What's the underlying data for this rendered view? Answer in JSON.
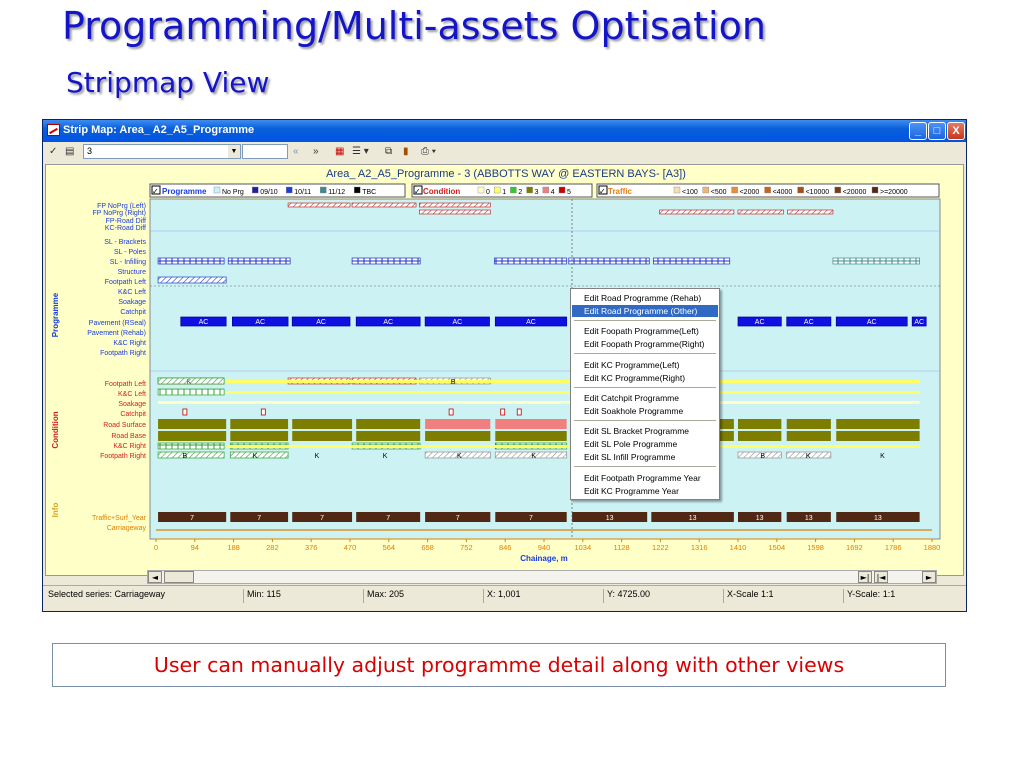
{
  "slide": {
    "title": "Programming/Multi-assets Optisation",
    "subtitle": "Stripmap View",
    "caption": "User can manually adjust programme detail along with other views"
  },
  "window": {
    "title": "Strip Map: Area_ A2_A5_Programme",
    "controls": [
      "_",
      "□",
      "X"
    ]
  },
  "toolbar": {
    "select_value": "3",
    "nav_back": "«",
    "nav_forward": "»",
    "icons": [
      "filter-icon",
      "copy-icon",
      "chart-icon",
      "list-icon",
      "copy-2-icon",
      "bar-chart-icon",
      "print-icon"
    ]
  },
  "plot": {
    "title": "Area_ A2_A5_Programme - 3 (ABBOTTS WAY @ EASTERN BAYS- [A3])",
    "xlabel": "Chainage, m",
    "x_ticks": [
      "0",
      "94",
      "188",
      "282",
      "376",
      "470",
      "564",
      "658",
      "752",
      "846",
      "940",
      "1034",
      "1128",
      "1222",
      "1316",
      "1410",
      "1504",
      "1598",
      "1692",
      "1786",
      "1880"
    ],
    "legends": {
      "programme": {
        "title": "Programme",
        "items": [
          "No Prg",
          "09/10",
          "10/11",
          "11/12",
          "TBC"
        ],
        "colors": [
          "#c8f0ff",
          "#1e1ea0",
          "#1a3ce0",
          "#3c8c8c",
          "#000000"
        ]
      },
      "condition": {
        "title": "Condition",
        "items": [
          "0",
          "1",
          "2",
          "3",
          "4",
          "5"
        ],
        "colors": [
          "#ffffc8",
          "#ffff64",
          "#32c832",
          "#7d7d00",
          "#f08080",
          "#c80000"
        ]
      },
      "traffic": {
        "title": "Traffic",
        "items": [
          "<100",
          "<500",
          "<2000",
          "<4000",
          "<10000",
          "<20000",
          ">=20000"
        ],
        "colors": [
          "#f5deb3",
          "#f0b478",
          "#e68c3c",
          "#c86414",
          "#a05014",
          "#7a3c14",
          "#502814"
        ]
      }
    },
    "sections": [
      "Programme",
      "Condition",
      "Info"
    ],
    "programme_rows": [
      "FP NoPrg (Left)",
      "FP NoPrg (Right)",
      "FP-Road Diff",
      "KC-Road Diff",
      "SL - Brackets",
      "SL - Poles",
      "SL - Infilling",
      "Structure",
      "Footpath Left",
      "K&C Left",
      "Soakage",
      "Catchpit",
      "Pavement (RSeal)",
      "Pavement (Rehab)",
      "K&C Right",
      "Footpath Right"
    ],
    "condition_rows": [
      "Footpath Left",
      "K&C Left",
      "Soakage",
      "Catchpit",
      "Road Surface",
      "Road Base",
      "K&C Right",
      "Footpath Right"
    ],
    "info_rows": [
      "Traffic+Surf_Year",
      "Carriageway"
    ],
    "ac_label": "AC",
    "traffic_labels": [
      "7",
      "7",
      "7",
      "7",
      "7",
      "7",
      "13",
      "13",
      "13",
      "13",
      "13"
    ],
    "condition_marks": [
      "K",
      "B",
      "B",
      "K",
      "K",
      "K",
      "K",
      "K",
      "B",
      "K",
      "K",
      "K"
    ]
  },
  "context_menu": {
    "items": [
      "Edit Road Programme (Rehab)",
      "Edit Road Programme (Other)",
      "Edit Foopath Programme(Left)",
      "Edit Foopath Programme(Right)",
      "Edit KC Programme(Left)",
      "Edit KC Programme(Right)",
      "Edit Catchpit Programme",
      "Edit Soakhole Programme",
      "Edit SL Bracket Programme",
      "Edit SL Pole Programme",
      "Edit SL Infill Programme",
      "Edit Footpath Programme Year",
      "Edit KC Programme Year"
    ],
    "selected_index": 1
  },
  "status": {
    "series": "Selected series: Carriageway",
    "min": "Min: 115",
    "max": "Max: 205",
    "x": "X: 1,001",
    "y": "Y: 4725.00",
    "xscale": "X-Scale 1:1",
    "yscale": "Y-Scale: 1:1"
  }
}
